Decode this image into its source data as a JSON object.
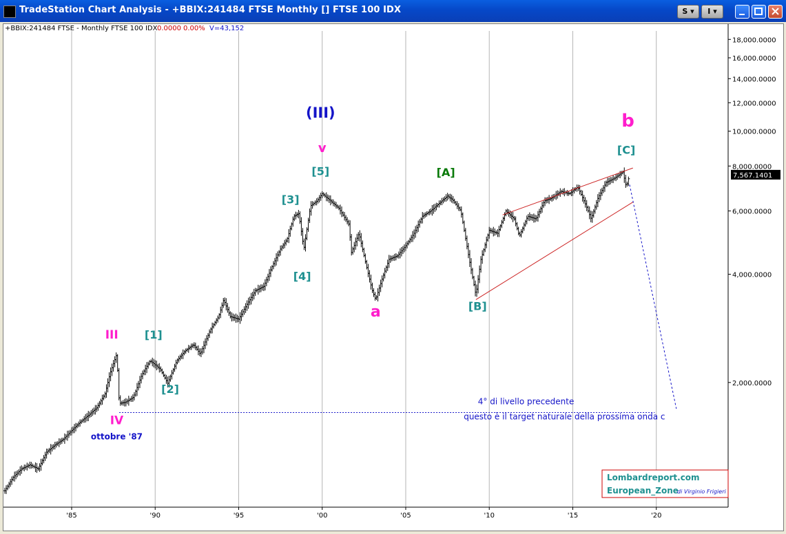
{
  "window": {
    "title": "TradeStation Chart Analysis - +BBIX:241484 FTSE Monthly [] FTSE 100 IDX",
    "btn_s": "S",
    "btn_i": "I"
  },
  "chart_header": {
    "symbol": "+BBIX:241484 FTSE - Monthly  FTSE 100 IDX",
    "change": "0.0000",
    "pct": "0.00%",
    "volume": "V=43,152"
  },
  "chart_data": {
    "type": "bar",
    "scale": "log",
    "ylim": [
      900,
      19000
    ],
    "xlim": [
      1981.0,
      2024.3
    ],
    "grid": true,
    "x_ticks": [
      "'85",
      "'90",
      "'95",
      "'00",
      "'05",
      "'10",
      "'15",
      "'20"
    ],
    "x_tick_values": [
      1985,
      1990,
      1995,
      2000,
      2005,
      2010,
      2015,
      2020
    ],
    "y_ticks": [
      "18,000.0000",
      "16,000.0000",
      "14,000.0000",
      "12,000.0000",
      "10,000.0000",
      "8,000.0000",
      "6,000.0000",
      "4,000.0000",
      "2,000.0000"
    ],
    "y_tick_values": [
      18000,
      16000,
      14000,
      12000,
      10000,
      8000,
      6000,
      4000,
      2000
    ],
    "last_price": "7,567.1401",
    "last_value": 7567.14,
    "price_path": [
      [
        1981.0,
        1000
      ],
      [
        1981.5,
        1090
      ],
      [
        1982.0,
        1150
      ],
      [
        1982.5,
        1180
      ],
      [
        1983.0,
        1150
      ],
      [
        1983.5,
        1280
      ],
      [
        1984.0,
        1340
      ],
      [
        1984.5,
        1390
      ],
      [
        1985.0,
        1470
      ],
      [
        1985.5,
        1550
      ],
      [
        1986.0,
        1620
      ],
      [
        1986.5,
        1700
      ],
      [
        1987.0,
        1860
      ],
      [
        1987.3,
        2120
      ],
      [
        1987.7,
        2400
      ],
      [
        1987.85,
        1750
      ],
      [
        1988.2,
        1760
      ],
      [
        1988.7,
        1820
      ],
      [
        1989.2,
        2100
      ],
      [
        1989.7,
        2300
      ],
      [
        1990.3,
        2180
      ],
      [
        1990.75,
        1990
      ],
      [
        1991.3,
        2300
      ],
      [
        1991.8,
        2450
      ],
      [
        1992.3,
        2550
      ],
      [
        1992.7,
        2400
      ],
      [
        1993.3,
        2800
      ],
      [
        1993.8,
        3050
      ],
      [
        1994.1,
        3400
      ],
      [
        1994.5,
        3050
      ],
      [
        1995.0,
        3000
      ],
      [
        1995.5,
        3300
      ],
      [
        1996.0,
        3600
      ],
      [
        1996.5,
        3700
      ],
      [
        1997.0,
        4200
      ],
      [
        1997.5,
        4700
      ],
      [
        1997.9,
        5000
      ],
      [
        1998.3,
        5800
      ],
      [
        1998.6,
        5900
      ],
      [
        1998.9,
        4700
      ],
      [
        1999.3,
        6200
      ],
      [
        1999.7,
        6400
      ],
      [
        2000.0,
        6700
      ],
      [
        2000.5,
        6400
      ],
      [
        2001.0,
        6100
      ],
      [
        2001.6,
        5500
      ],
      [
        2001.75,
        4600
      ],
      [
        2002.2,
        5200
      ],
      [
        2002.6,
        4300
      ],
      [
        2003.0,
        3600
      ],
      [
        2003.2,
        3400
      ],
      [
        2003.6,
        3900
      ],
      [
        2004.0,
        4400
      ],
      [
        2004.5,
        4500
      ],
      [
        2005.0,
        4800
      ],
      [
        2005.5,
        5200
      ],
      [
        2006.0,
        5800
      ],
      [
        2006.5,
        6000
      ],
      [
        2007.0,
        6300
      ],
      [
        2007.5,
        6600
      ],
      [
        2007.8,
        6450
      ],
      [
        2008.3,
        6000
      ],
      [
        2008.8,
        4400
      ],
      [
        2009.2,
        3500
      ],
      [
        2009.5,
        4400
      ],
      [
        2010.0,
        5300
      ],
      [
        2010.5,
        5200
      ],
      [
        2011.0,
        6000
      ],
      [
        2011.5,
        5700
      ],
      [
        2011.8,
        5100
      ],
      [
        2012.3,
        5800
      ],
      [
        2012.8,
        5700
      ],
      [
        2013.3,
        6400
      ],
      [
        2013.7,
        6500
      ],
      [
        2014.3,
        6800
      ],
      [
        2014.8,
        6700
      ],
      [
        2015.3,
        7000
      ],
      [
        2015.8,
        6200
      ],
      [
        2016.1,
        5700
      ],
      [
        2016.5,
        6500
      ],
      [
        2017.0,
        7200
      ],
      [
        2017.5,
        7400
      ],
      [
        2018.0,
        7700
      ],
      [
        2018.2,
        7000
      ],
      [
        2018.4,
        7567
      ]
    ],
    "annotations": [
      {
        "text": "(III)",
        "x": 1999.9,
        "y": 10900,
        "color": "#1414c8",
        "size": 21
      },
      {
        "text": "v",
        "x": 2000.0,
        "y": 8750,
        "color": "#ff1ecc",
        "size": 18
      },
      {
        "text": "[5]",
        "x": 1999.9,
        "y": 7550,
        "color": "#1e9090",
        "size": 16
      },
      {
        "text": "[3]",
        "x": 1998.1,
        "y": 6300,
        "color": "#1e9090",
        "size": 16
      },
      {
        "text": "[4]",
        "x": 1998.8,
        "y": 3850,
        "color": "#1e9090",
        "size": 16
      },
      {
        "text": "III",
        "x": 1987.4,
        "y": 2650,
        "color": "#ff1ecc",
        "size": 17
      },
      {
        "text": "[1]",
        "x": 1989.9,
        "y": 2650,
        "color": "#1e9090",
        "size": 16
      },
      {
        "text": "[2]",
        "x": 1990.9,
        "y": 1870,
        "color": "#1e9090",
        "size": 16
      },
      {
        "text": "IV",
        "x": 1987.7,
        "y": 1530,
        "color": "#ff1ecc",
        "size": 17
      },
      {
        "text": "ottobre '87",
        "x": 1987.7,
        "y": 1390,
        "color": "#1414c8",
        "size": 12
      },
      {
        "text": "a",
        "x": 2003.2,
        "y": 3050,
        "color": "#ff1ecc",
        "size": 22
      },
      {
        "text": "[A]",
        "x": 2007.4,
        "y": 7500,
        "color": "#0a7a0a",
        "size": 16
      },
      {
        "text": "[B]",
        "x": 2009.3,
        "y": 3180,
        "color": "#1e9090",
        "size": 16
      },
      {
        "text": "b",
        "x": 2018.3,
        "y": 10300,
        "color": "#ff1ecc",
        "size": 26
      },
      {
        "text": "[C]",
        "x": 2018.2,
        "y": 8650,
        "color": "#1e9090",
        "size": 16
      },
      {
        "text": "4° di livello precedente",
        "x": 2012.2,
        "y": 1740,
        "color": "#1414c8",
        "size": 12
      },
      {
        "text": "questo è il target naturale della prossima onda c",
        "x": 2014.5,
        "y": 1580,
        "color": "#1414c8",
        "size": 12
      }
    ],
    "wedge": {
      "upper": [
        [
          2010.8,
          5850
        ],
        [
          2018.6,
          7900
        ]
      ],
      "lower": [
        [
          2009.2,
          3400
        ],
        [
          2018.6,
          6350
        ]
      ],
      "color": "#cc2222"
    },
    "target_line": {
      "points": [
        [
          1987.85,
          1650
        ],
        [
          2019.9,
          1650
        ]
      ],
      "color": "#1414c8"
    },
    "forecast_line": {
      "points": [
        [
          2018.4,
          7100
        ],
        [
          2021.2,
          1690
        ]
      ],
      "color": "#1414c8"
    }
  },
  "watermark": {
    "line1": "Lombardreport.com",
    "line2": "European_Zone",
    "line3": "di Virginio Frigieri"
  }
}
